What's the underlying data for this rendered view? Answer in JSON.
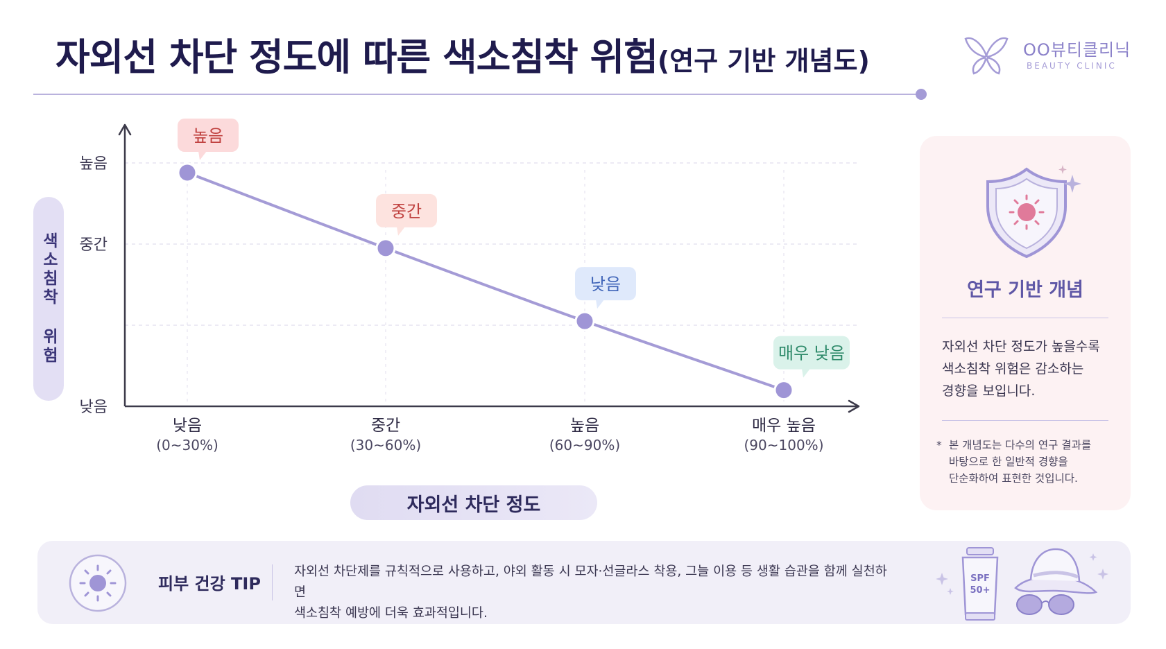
{
  "title": {
    "main": "자외선 차단 정도에 따른 색소침착 위험",
    "sub": "(연구 기반 개념도)"
  },
  "logo": {
    "name": "OO뷰티클리닉",
    "sub": "BEAUTY CLINIC"
  },
  "colors": {
    "accent": "#9f95d6",
    "line": "#a49bd6",
    "label_high_bg": "#fcdadb",
    "label_mid_bg": "#fde3df",
    "label_low_bg": "#dfe9fb",
    "label_vlow_bg": "#daf2ea"
  },
  "chart_data": {
    "type": "line",
    "x_categories": [
      {
        "label": "낮음",
        "range": "(0~30%)"
      },
      {
        "label": "중간",
        "range": "(30~60%)"
      },
      {
        "label": "높음",
        "range": "(60~90%)"
      },
      {
        "label": "매우 높음",
        "range": "(90~100%)"
      }
    ],
    "y_ticks": [
      {
        "label": "높음",
        "value": 3
      },
      {
        "label": "중간",
        "value": 2
      },
      {
        "label": "",
        "value": 1
      },
      {
        "label": "낮음",
        "value": 0
      }
    ],
    "ylim": [
      0,
      3.3
    ],
    "series": [
      {
        "values": [
          2.88,
          1.95,
          1.05,
          0.2
        ]
      }
    ],
    "point_labels": [
      "높음",
      "중간",
      "낮음",
      "매우 낮음"
    ],
    "xlabel": "자외선 차단 정도",
    "ylabel": "색소침착 위험",
    "grid": true
  },
  "side_card": {
    "icon": "shield-sun-icon",
    "title": "연구 기반 개념",
    "body_lines": [
      "자외선 차단 정도가 높을수록",
      "색소침착 위험은 감소하는",
      "경향을 보입니다."
    ],
    "note_star": "*",
    "note_lines": [
      "본 개념도는 다수의 연구 결과를",
      "바탕으로 한 일반적 경향을",
      "단순화하여 표현한 것입니다."
    ]
  },
  "tip": {
    "icon": "sun-icon",
    "title": "피부 건강 TIP",
    "lines": [
      "자외선 차단제를 규칙적으로 사용하고, 야외 활동 시 모자·선글라스 착용, 그늘 이용 등 생활 습관을 함께 실천하면",
      "색소침착 예방에 더욱 효과적입니다."
    ],
    "spf_line1": "SPF",
    "spf_line2": "50+"
  }
}
